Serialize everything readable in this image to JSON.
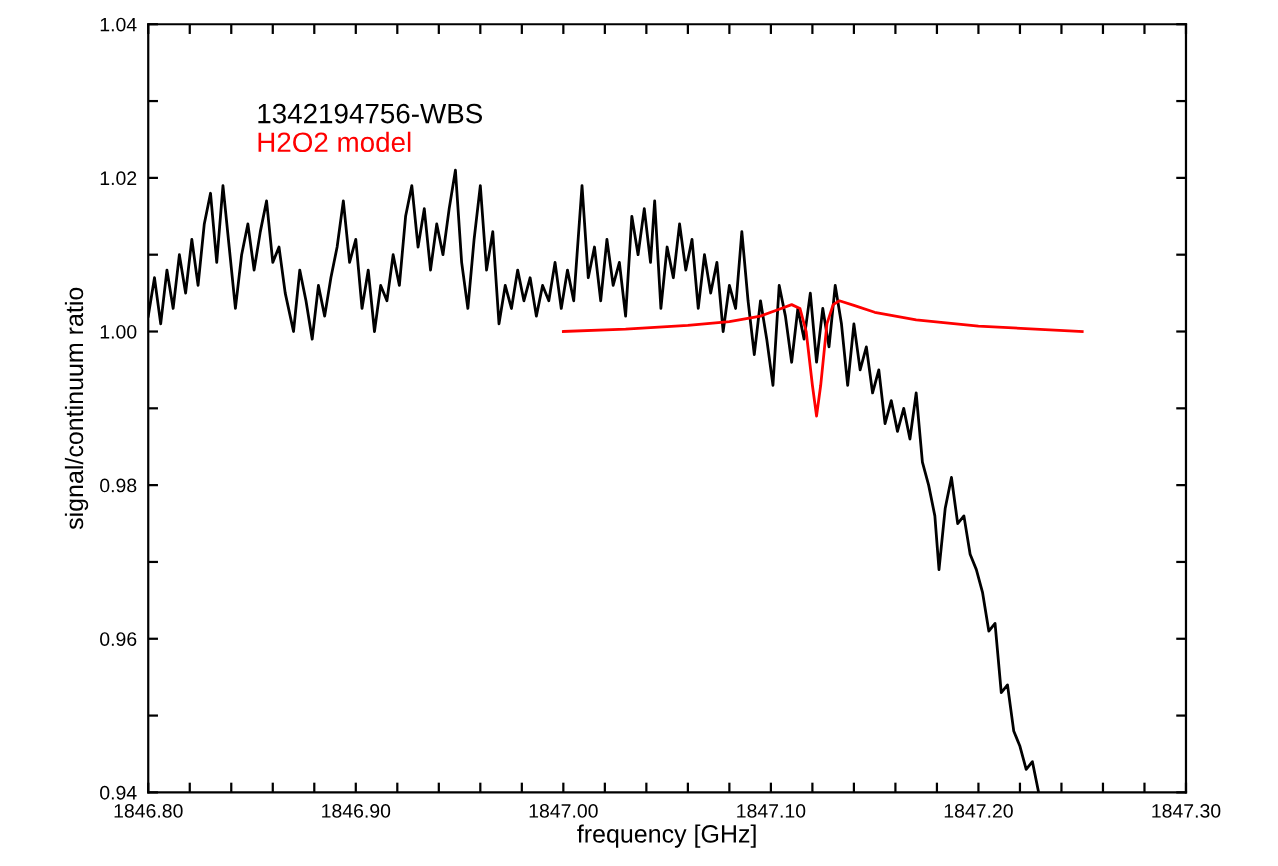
{
  "chart_data": {
    "type": "line",
    "xlabel": "frequency [GHz]",
    "ylabel": "signal/continuum ratio",
    "xlim": [
      1846.8,
      1847.3
    ],
    "ylim": [
      0.94,
      1.04
    ],
    "xticks": [
      {
        "value": 1846.8,
        "label": "1846.80"
      },
      {
        "value": 1846.82,
        "label": null
      },
      {
        "value": 1846.84,
        "label": null
      },
      {
        "value": 1846.86,
        "label": null
      },
      {
        "value": 1846.88,
        "label": null
      },
      {
        "value": 1846.9,
        "label": "1846.90"
      },
      {
        "value": 1846.92,
        "label": null
      },
      {
        "value": 1846.94,
        "label": null
      },
      {
        "value": 1846.96,
        "label": null
      },
      {
        "value": 1846.98,
        "label": null
      },
      {
        "value": 1847.0,
        "label": "1847.00"
      },
      {
        "value": 1847.02,
        "label": null
      },
      {
        "value": 1847.04,
        "label": null
      },
      {
        "value": 1847.06,
        "label": null
      },
      {
        "value": 1847.08,
        "label": null
      },
      {
        "value": 1847.1,
        "label": "1847.10"
      },
      {
        "value": 1847.12,
        "label": null
      },
      {
        "value": 1847.14,
        "label": null
      },
      {
        "value": 1847.16,
        "label": null
      },
      {
        "value": 1847.18,
        "label": null
      },
      {
        "value": 1847.2,
        "label": "1847.20"
      },
      {
        "value": 1847.22,
        "label": null
      },
      {
        "value": 1847.24,
        "label": null
      },
      {
        "value": 1847.26,
        "label": null
      },
      {
        "value": 1847.28,
        "label": null
      },
      {
        "value": 1847.3,
        "label": "1847.30"
      }
    ],
    "yticks": [
      0.94,
      {
        "value": 0.95,
        "label": null
      },
      0.96,
      {
        "value": 0.97,
        "label": null
      },
      0.98,
      {
        "value": 0.99,
        "label": null
      },
      {
        "value": 1.0,
        "label": "1.00"
      },
      {
        "value": 1.01,
        "label": null
      },
      1.02,
      {
        "value": 1.03,
        "label": null
      },
      1.04
    ],
    "grid": false,
    "legend": "top left",
    "marker": "none",
    "line_style": "solid",
    "series": [
      {
        "name": "1342194756-WBS",
        "color": "#000000",
        "x": [
          1846.8,
          1846.803,
          1846.806,
          1846.809,
          1846.812,
          1846.815,
          1846.818,
          1846.821,
          1846.824,
          1846.827,
          1846.83,
          1846.833,
          1846.836,
          1846.839,
          1846.842,
          1846.845,
          1846.848,
          1846.851,
          1846.854,
          1846.857,
          1846.86,
          1846.863,
          1846.866,
          1846.87,
          1846.873,
          1846.876,
          1846.879,
          1846.882,
          1846.885,
          1846.888,
          1846.891,
          1846.894,
          1846.897,
          1846.9,
          1846.903,
          1846.906,
          1846.909,
          1846.912,
          1846.915,
          1846.918,
          1846.921,
          1846.924,
          1846.927,
          1846.93,
          1846.933,
          1846.936,
          1846.939,
          1846.942,
          1846.945,
          1846.948,
          1846.951,
          1846.954,
          1846.957,
          1846.96,
          1846.963,
          1846.966,
          1846.969,
          1846.972,
          1846.975,
          1846.978,
          1846.981,
          1846.984,
          1846.987,
          1846.99,
          1846.993,
          1846.996,
          1846.999,
          1847.002,
          1847.005,
          1847.009,
          1847.012,
          1847.015,
          1847.018,
          1847.021,
          1847.024,
          1847.027,
          1847.03,
          1847.033,
          1847.036,
          1847.039,
          1847.042,
          1847.044,
          1847.047,
          1847.05,
          1847.053,
          1847.056,
          1847.059,
          1847.062,
          1847.065,
          1847.068,
          1847.071,
          1847.074,
          1847.077,
          1847.08,
          1847.083,
          1847.086,
          1847.089,
          1847.092,
          1847.095,
          1847.098,
          1847.101,
          1847.104,
          1847.107,
          1847.11,
          1847.113,
          1847.116,
          1847.119,
          1847.122,
          1847.125,
          1847.128,
          1847.131,
          1847.134,
          1847.137,
          1847.14,
          1847.143,
          1847.146,
          1847.149,
          1847.152,
          1847.155,
          1847.158,
          1847.161,
          1847.164,
          1847.167,
          1847.17,
          1847.173,
          1847.176,
          1847.179,
          1847.181,
          1847.184,
          1847.187,
          1847.19,
          1847.193,
          1847.196,
          1847.199,
          1847.202,
          1847.205,
          1847.208,
          1847.211,
          1847.214,
          1847.217,
          1847.22,
          1847.223,
          1847.226,
          1847.229
        ],
        "values": [
          1.002,
          1.007,
          1.001,
          1.008,
          1.003,
          1.01,
          1.005,
          1.012,
          1.006,
          1.014,
          1.018,
          1.009,
          1.019,
          1.011,
          1.003,
          1.01,
          1.014,
          1.008,
          1.013,
          1.017,
          1.009,
          1.011,
          1.005,
          1.0,
          1.008,
          1.004,
          0.999,
          1.006,
          1.002,
          1.007,
          1.011,
          1.017,
          1.009,
          1.012,
          1.003,
          1.008,
          1.0,
          1.006,
          1.004,
          1.01,
          1.006,
          1.015,
          1.019,
          1.011,
          1.016,
          1.008,
          1.014,
          1.01,
          1.016,
          1.021,
          1.009,
          1.003,
          1.012,
          1.019,
          1.008,
          1.013,
          1.001,
          1.006,
          1.003,
          1.008,
          1.004,
          1.007,
          1.002,
          1.006,
          1.004,
          1.009,
          1.003,
          1.008,
          1.004,
          1.019,
          1.007,
          1.011,
          1.004,
          1.012,
          1.006,
          1.009,
          1.002,
          1.015,
          1.01,
          1.016,
          1.009,
          1.017,
          1.003,
          1.011,
          1.007,
          1.014,
          1.008,
          1.012,
          1.003,
          1.01,
          1.005,
          1.009,
          1.0,
          1.006,
          1.003,
          1.013,
          1.004,
          0.997,
          1.004,
          0.999,
          0.993,
          1.006,
          1.002,
          0.996,
          1.003,
          0.999,
          1.005,
          0.996,
          1.003,
          0.998,
          1.006,
          1.001,
          0.993,
          1.001,
          0.995,
          0.998,
          0.992,
          0.995,
          0.988,
          0.991,
          0.987,
          0.99,
          0.986,
          0.992,
          0.983,
          0.98,
          0.976,
          0.969,
          0.977,
          0.981,
          0.975,
          0.976,
          0.971,
          0.969,
          0.966,
          0.961,
          0.962,
          0.953,
          0.954,
          0.948,
          0.946,
          0.943,
          0.944,
          0.94
        ]
      },
      {
        "name": "H2O2 model",
        "color": "#ff0000",
        "x": [
          1847.0,
          1847.03,
          1847.06,
          1847.08,
          1847.095,
          1847.105,
          1847.11,
          1847.114,
          1847.117,
          1847.12,
          1847.122,
          1847.124,
          1847.127,
          1847.13,
          1847.133,
          1847.14,
          1847.15,
          1847.17,
          1847.2,
          1847.25
        ],
        "values": [
          1.0,
          1.0003,
          1.0008,
          1.0013,
          1.002,
          1.003,
          1.0035,
          1.003,
          1.0,
          0.993,
          0.989,
          0.993,
          1.001,
          1.0035,
          1.004,
          1.0034,
          1.0025,
          1.0015,
          1.0007,
          1.0
        ]
      }
    ]
  }
}
